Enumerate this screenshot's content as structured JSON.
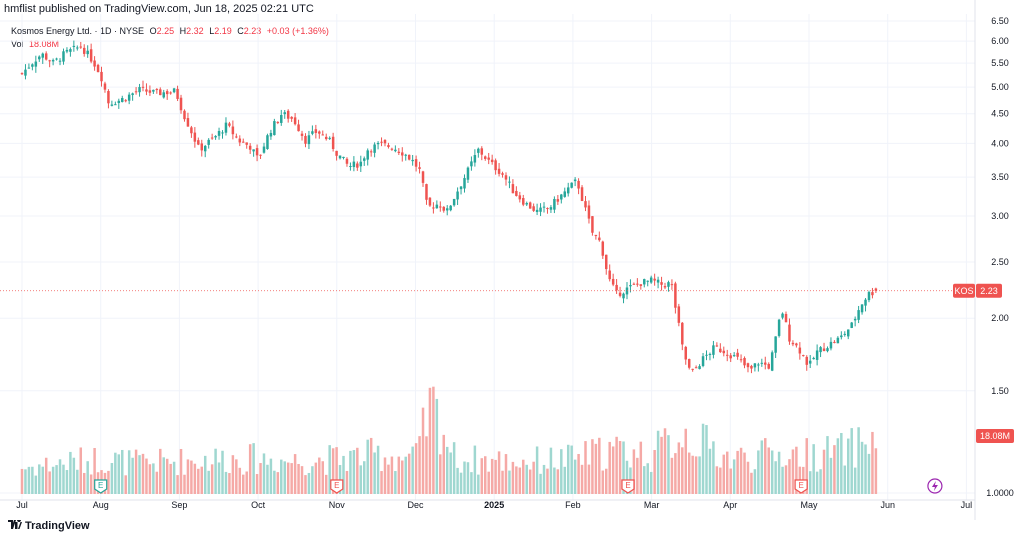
{
  "publisher_text": "hmflist published on TradingView.com, Jun 18, 2025 02:21 UTC",
  "legend": {
    "symbol_line": "Kosmos Energy Ltd. · 1D · NYSE",
    "o_label": "O",
    "o_value": "2.25",
    "h_label": "H",
    "h_value": "2.32",
    "l_label": "L",
    "l_value": "2.19",
    "c_label": "C",
    "c_value": "2.23",
    "change": "+0.03 (+1.36%)",
    "vol_label": "Vol",
    "vol_value": "18.08M"
  },
  "footer": {
    "brand": "TradingView"
  },
  "colors": {
    "up": "#26a69a",
    "down": "#ef5350",
    "vol_up": "#9fd7d0",
    "vol_down": "#f5a9a6",
    "grid": "#f0f3fa",
    "axis_text": "#131722"
  },
  "chart_data": {
    "type": "candlestick",
    "symbol": "KOS",
    "exchange": "NYSE",
    "interval": "1D",
    "y_axis": {
      "min": 1.0,
      "max": 6.5,
      "scale": "log",
      "ticks": [
        "1.0000",
        "1.50",
        "2.00",
        "2.50",
        "3.00",
        "3.50",
        "4.00",
        "4.50",
        "5.00",
        "5.50",
        "6.00",
        "6.50"
      ]
    },
    "x_axis": {
      "labels": [
        "Jul",
        "Aug",
        "Sep",
        "Oct",
        "Nov",
        "Dec",
        "2025",
        "Feb",
        "Mar",
        "Apr",
        "May",
        "Jun",
        "Jul"
      ]
    },
    "last_price": {
      "label": "KOS",
      "value": "2.23"
    },
    "last_volume": "18.08M",
    "earnings_markers": [
      {
        "month_index": 1,
        "label": "E"
      },
      {
        "month_index": 4,
        "label": "E"
      },
      {
        "month_index": 7.7,
        "label": "E"
      },
      {
        "month_index": 9.9,
        "label": "E"
      }
    ],
    "dividend_marker": {
      "month_index": 11.6
    },
    "close_path": [
      [
        0,
        5.28
      ],
      [
        0.15,
        5.55
      ],
      [
        0.25,
        5.7
      ],
      [
        0.4,
        5.5
      ],
      [
        0.55,
        5.72
      ],
      [
        0.75,
        5.88
      ],
      [
        0.9,
        5.55
      ],
      [
        1.0,
        5.25
      ],
      [
        1.1,
        4.7
      ],
      [
        1.25,
        4.75
      ],
      [
        1.5,
        4.95
      ],
      [
        1.7,
        4.88
      ],
      [
        1.95,
        4.92
      ],
      [
        2.05,
        4.5
      ],
      [
        2.25,
        3.9
      ],
      [
        2.45,
        4.1
      ],
      [
        2.6,
        4.3
      ],
      [
        2.75,
        4.05
      ],
      [
        2.9,
        3.95
      ],
      [
        3.0,
        3.75
      ],
      [
        3.15,
        4.2
      ],
      [
        3.3,
        4.5
      ],
      [
        3.45,
        4.4
      ],
      [
        3.6,
        4.05
      ],
      [
        3.75,
        4.2
      ],
      [
        3.9,
        4.05
      ],
      [
        4.0,
        3.85
      ],
      [
        4.15,
        3.65
      ],
      [
        4.3,
        3.7
      ],
      [
        4.4,
        3.92
      ],
      [
        4.55,
        3.98
      ],
      [
        4.7,
        3.95
      ],
      [
        4.85,
        3.85
      ],
      [
        4.95,
        3.75
      ],
      [
        5.05,
        3.6
      ],
      [
        5.15,
        3.1
      ],
      [
        5.3,
        3.15
      ],
      [
        5.4,
        3.05
      ],
      [
        5.5,
        3.25
      ],
      [
        5.65,
        3.55
      ],
      [
        5.8,
        3.9
      ],
      [
        5.95,
        3.7
      ],
      [
        6.1,
        3.55
      ],
      [
        6.25,
        3.3
      ],
      [
        6.4,
        3.15
      ],
      [
        6.55,
        3.05
      ],
      [
        6.7,
        3.1
      ],
      [
        6.85,
        3.25
      ],
      [
        6.95,
        3.35
      ],
      [
        7.05,
        3.45
      ],
      [
        7.15,
        3.1
      ],
      [
        7.25,
        2.8
      ],
      [
        7.35,
        2.7
      ],
      [
        7.45,
        2.35
      ],
      [
        7.55,
        2.2
      ],
      [
        7.7,
        2.25
      ],
      [
        7.85,
        2.3
      ],
      [
        8.0,
        2.32
      ],
      [
        8.15,
        2.28
      ],
      [
        8.25,
        2.3
      ],
      [
        8.3,
        2.1
      ],
      [
        8.4,
        1.75
      ],
      [
        8.5,
        1.6
      ],
      [
        8.65,
        1.7
      ],
      [
        8.8,
        1.78
      ],
      [
        8.95,
        1.75
      ],
      [
        9.1,
        1.7
      ],
      [
        9.25,
        1.62
      ],
      [
        9.35,
        1.68
      ],
      [
        9.5,
        1.65
      ],
      [
        9.6,
        1.9
      ],
      [
        9.65,
        2.08
      ],
      [
        9.75,
        1.85
      ],
      [
        9.9,
        1.75
      ],
      [
        10.0,
        1.65
      ],
      [
        10.1,
        1.75
      ],
      [
        10.25,
        1.8
      ],
      [
        10.4,
        1.85
      ],
      [
        10.55,
        1.95
      ],
      [
        10.65,
        2.1
      ],
      [
        10.75,
        2.2
      ],
      [
        10.85,
        2.23
      ]
    ],
    "volume_path": [
      [
        0,
        12
      ],
      [
        1.0,
        16
      ],
      [
        1.5,
        14
      ],
      [
        2.0,
        15
      ],
      [
        2.5,
        16
      ],
      [
        3.0,
        16
      ],
      [
        3.5,
        15
      ],
      [
        4.0,
        16
      ],
      [
        4.5,
        18
      ],
      [
        5.0,
        16
      ],
      [
        5.2,
        40
      ],
      [
        5.3,
        34
      ],
      [
        5.5,
        16
      ],
      [
        6.0,
        15
      ],
      [
        6.5,
        15
      ],
      [
        7.0,
        16
      ],
      [
        7.5,
        20
      ],
      [
        8.0,
        18
      ],
      [
        8.4,
        28
      ],
      [
        8.7,
        22
      ],
      [
        9.0,
        16
      ],
      [
        9.5,
        18
      ],
      [
        10.0,
        18
      ],
      [
        10.5,
        20
      ],
      [
        10.8,
        26
      ],
      [
        10.9,
        18
      ]
    ]
  }
}
